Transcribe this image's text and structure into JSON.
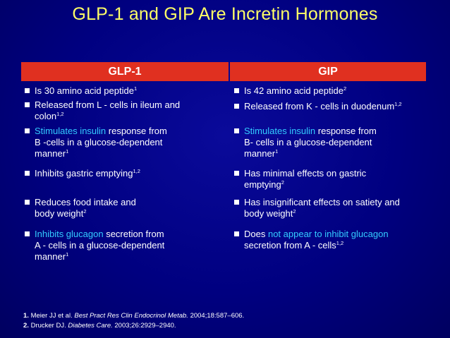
{
  "title": "GLP-1 and GIP Are Incretin Hormones",
  "columns": {
    "left": {
      "header": "GLP-1",
      "items": [
        {
          "t1": "Is 30 amino acid peptide",
          "sup": "1"
        },
        {
          "t1": " Released from L - cells in ileum and",
          "t2": "colon",
          "sup": "1,2"
        },
        {
          "hl": "Stimulates insulin",
          "t1": " response from",
          "t2": "B -cells in a glucose-dependent",
          "t3": "manner",
          "sup": "1"
        },
        {
          "t1": "Inhibits gastric emptying",
          "sup": "1,2"
        },
        {
          "t1": "Reduces food intake and",
          "t2": "body weight",
          "sup": "2"
        },
        {
          "hl": "Inhibits glucagon",
          "t1": " secretion from",
          "t2": "A - cells in a glucose-dependent",
          "t3": "manner",
          "sup": "1"
        }
      ]
    },
    "right": {
      "header": "GIP",
      "items": [
        {
          "t1": "Is 42 amino acid peptide",
          "sup": "2"
        },
        {
          "t1": "Released from K - cells in duodenum",
          "sup": "1,2"
        },
        {
          "hl": "Stimulates insulin",
          "t1": " response from",
          "t2": "B- cells in a glucose-dependent",
          "t3": "manner",
          "sup": "1"
        },
        {
          "t1": "Has minimal effects on gastric",
          "t2": "emptying",
          "sup": "2"
        },
        {
          "t1": "Has insignificant effects on satiety and",
          "t2": "body weight",
          "sup": "2"
        },
        {
          "pre": "Does ",
          "hl": "not appear to inhibit glucagon",
          "t2": "secretion from A - cells",
          "sup": "1,2"
        }
      ]
    }
  },
  "references": [
    {
      "num": "1.",
      "author": " Meier JJ et al. ",
      "journal": "Best Pract Res Clin Endocrinol Metab.",
      "rest": " 2004;18:587–606."
    },
    {
      "num": "2.",
      "author": " Drucker DJ. ",
      "journal": "Diabetes Care.",
      "rest": " 2003;26:2929–2940."
    }
  ]
}
